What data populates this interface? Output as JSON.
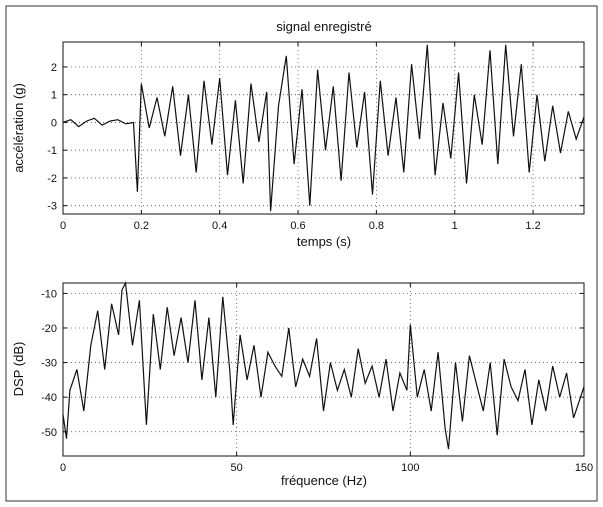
{
  "chart_data": [
    {
      "type": "line",
      "title": "signal enregistré",
      "xlabel": "temps (s)",
      "ylabel": "accélération (g)",
      "xlim": [
        0,
        1.33
      ],
      "ylim": [
        -3.3,
        2.9
      ],
      "xticks": [
        0,
        0.2,
        0.4,
        0.6,
        0.8,
        1,
        1.2
      ],
      "xtick_labels": [
        "0",
        "0.2",
        "0.4",
        "0.6",
        "0.8",
        "1",
        "1.2"
      ],
      "yticks": [
        2,
        1,
        0,
        -1,
        -2,
        -3
      ],
      "ytick_labels": [
        "2",
        "1",
        "0",
        "-1",
        "-2",
        "-3"
      ],
      "grid": true,
      "series": [
        {
          "x": [
            0,
            0.02,
            0.04,
            0.06,
            0.08,
            0.1,
            0.12,
            0.14,
            0.16,
            0.18,
            0.19,
            0.2,
            0.22,
            0.24,
            0.26,
            0.28,
            0.3,
            0.32,
            0.34,
            0.36,
            0.38,
            0.4,
            0.42,
            0.44,
            0.46,
            0.48,
            0.5,
            0.52,
            0.53,
            0.55,
            0.57,
            0.59,
            0.61,
            0.63,
            0.65,
            0.67,
            0.69,
            0.71,
            0.73,
            0.75,
            0.77,
            0.79,
            0.81,
            0.83,
            0.85,
            0.87,
            0.89,
            0.91,
            0.93,
            0.95,
            0.97,
            0.99,
            1.01,
            1.03,
            1.05,
            1.07,
            1.09,
            1.11,
            1.13,
            1.15,
            1.17,
            1.19,
            1.21,
            1.23,
            1.25,
            1.27,
            1.29,
            1.31,
            1.33
          ],
          "values": [
            0.0,
            0.1,
            -0.15,
            0.05,
            0.15,
            -0.1,
            0.05,
            0.1,
            -0.05,
            0.0,
            -2.5,
            1.4,
            -0.2,
            0.9,
            -0.5,
            1.3,
            -1.2,
            1.0,
            -1.8,
            1.5,
            -0.8,
            1.6,
            -1.9,
            0.8,
            -2.2,
            1.4,
            -0.7,
            1.1,
            -3.2,
            0.6,
            2.4,
            -1.5,
            1.2,
            -3.0,
            1.9,
            -1.0,
            1.3,
            -2.1,
            1.8,
            -0.9,
            1.1,
            -2.6,
            1.5,
            -1.2,
            0.9,
            -1.8,
            2.1,
            -0.6,
            2.8,
            -1.9,
            0.7,
            -1.3,
            1.8,
            -2.2,
            1.0,
            -0.8,
            2.6,
            -1.5,
            2.8,
            -0.5,
            2.1,
            -1.8,
            1.0,
            -1.4,
            0.6,
            -1.1,
            0.4,
            -0.6,
            0.2
          ]
        }
      ]
    },
    {
      "type": "line",
      "title": "",
      "xlabel": "fréquence (Hz)",
      "ylabel": "DSP (dB)",
      "xlim": [
        0,
        150
      ],
      "ylim": [
        -57,
        -7
      ],
      "xticks": [
        0,
        50,
        100,
        150
      ],
      "xtick_labels": [
        "0",
        "50",
        "100",
        "150"
      ],
      "yticks": [
        -10,
        -20,
        -30,
        -40,
        -50
      ],
      "ytick_labels": [
        "-10",
        "-20",
        "-30",
        "-40",
        "-50"
      ],
      "grid": true,
      "series": [
        {
          "x": [
            0,
            1,
            2,
            4,
            6,
            8,
            10,
            12,
            14,
            16,
            17,
            18,
            20,
            22,
            24,
            26,
            28,
            30,
            32,
            34,
            36,
            38,
            40,
            42,
            44,
            46,
            48,
            49,
            51,
            53,
            55,
            57,
            59,
            61,
            63,
            65,
            67,
            69,
            71,
            73,
            75,
            77,
            79,
            81,
            83,
            85,
            87,
            89,
            91,
            93,
            95,
            97,
            99,
            100,
            102,
            104,
            106,
            108,
            110,
            111,
            113,
            115,
            117,
            119,
            121,
            123,
            125,
            127,
            129,
            131,
            133,
            135,
            137,
            139,
            141,
            143,
            145,
            147,
            150
          ],
          "values": [
            -45,
            -52,
            -38,
            -32,
            -44,
            -25,
            -15,
            -32,
            -13,
            -22,
            -9,
            -7,
            -25,
            -12,
            -48,
            -16,
            -32,
            -14,
            -28,
            -17,
            -30,
            -12,
            -35,
            -17,
            -40,
            -11,
            -32,
            -48,
            -22,
            -35,
            -25,
            -40,
            -27,
            -31,
            -34,
            -20,
            -37,
            -29,
            -34,
            -23,
            -44,
            -30,
            -38,
            -32,
            -40,
            -26,
            -36,
            -31,
            -40,
            -29,
            -44,
            -33,
            -38,
            -19,
            -40,
            -32,
            -44,
            -27,
            -49,
            -55,
            -30,
            -47,
            -28,
            -36,
            -44,
            -30,
            -51,
            -29,
            -37,
            -41,
            -32,
            -48,
            -35,
            -44,
            -31,
            -40,
            -33,
            -46,
            -37
          ]
        }
      ]
    }
  ]
}
